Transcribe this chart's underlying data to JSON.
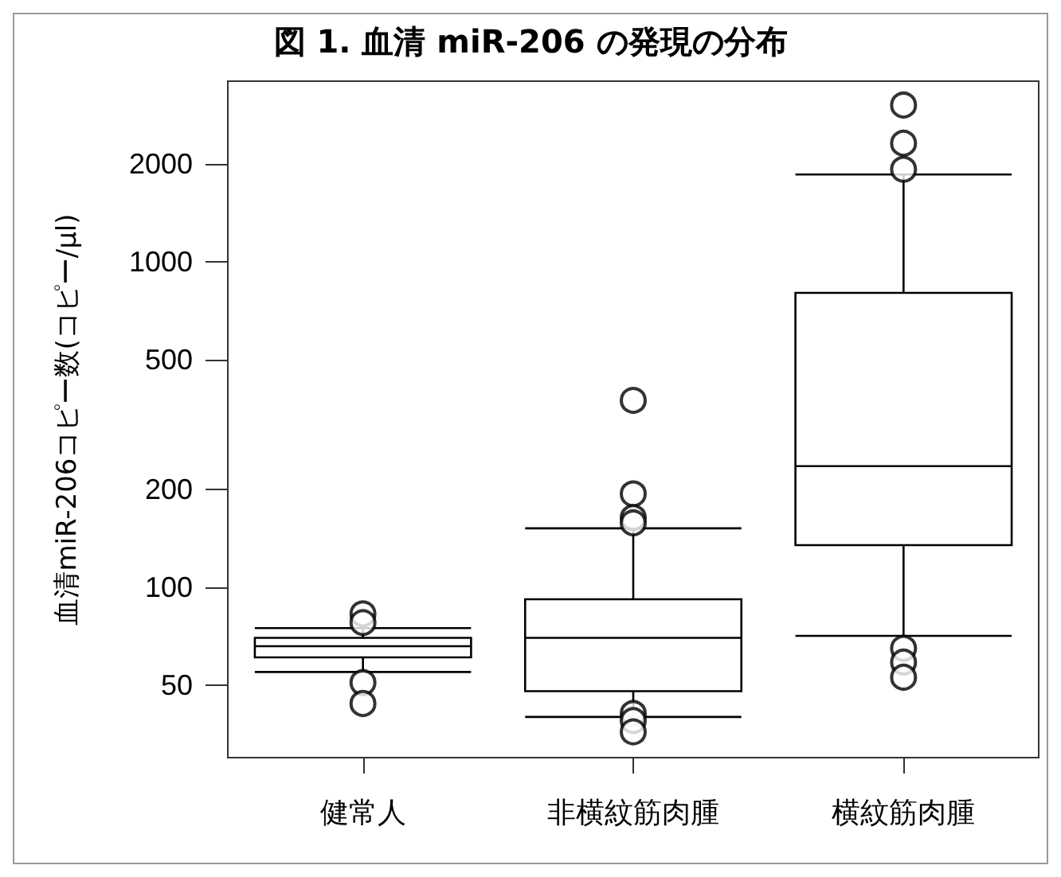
{
  "chart_data": {
    "type": "box",
    "title": "図 1. 血清 miR-206 の発現の分布",
    "ylabel": "血清miR-206コピー数(コピー/μl)",
    "categories": [
      "健常人",
      "非横紋筋肉腫",
      "横紋筋肉腫"
    ],
    "boxes": [
      {
        "low": 55,
        "q1": 61,
        "median": 66,
        "q3": 70,
        "high": 75,
        "outliers": [
          83,
          78,
          51,
          44
        ]
      },
      {
        "low": 40,
        "q1": 48,
        "median": 70,
        "q3": 92,
        "high": 152,
        "outliers": [
          376,
          194,
          164,
          158,
          41,
          39,
          36
        ]
      },
      {
        "low": 71,
        "q1": 135,
        "median": 236,
        "q3": 805,
        "high": 1860,
        "outliers": [
          3040,
          2320,
          1930,
          65,
          59,
          53
        ]
      }
    ],
    "color": "#000000",
    "log": true,
    "ylim": [
      30,
      3600
    ],
    "yticks": [
      50,
      100,
      200,
      500,
      1000,
      2000
    ],
    "grid": false,
    "marker": "circle"
  }
}
